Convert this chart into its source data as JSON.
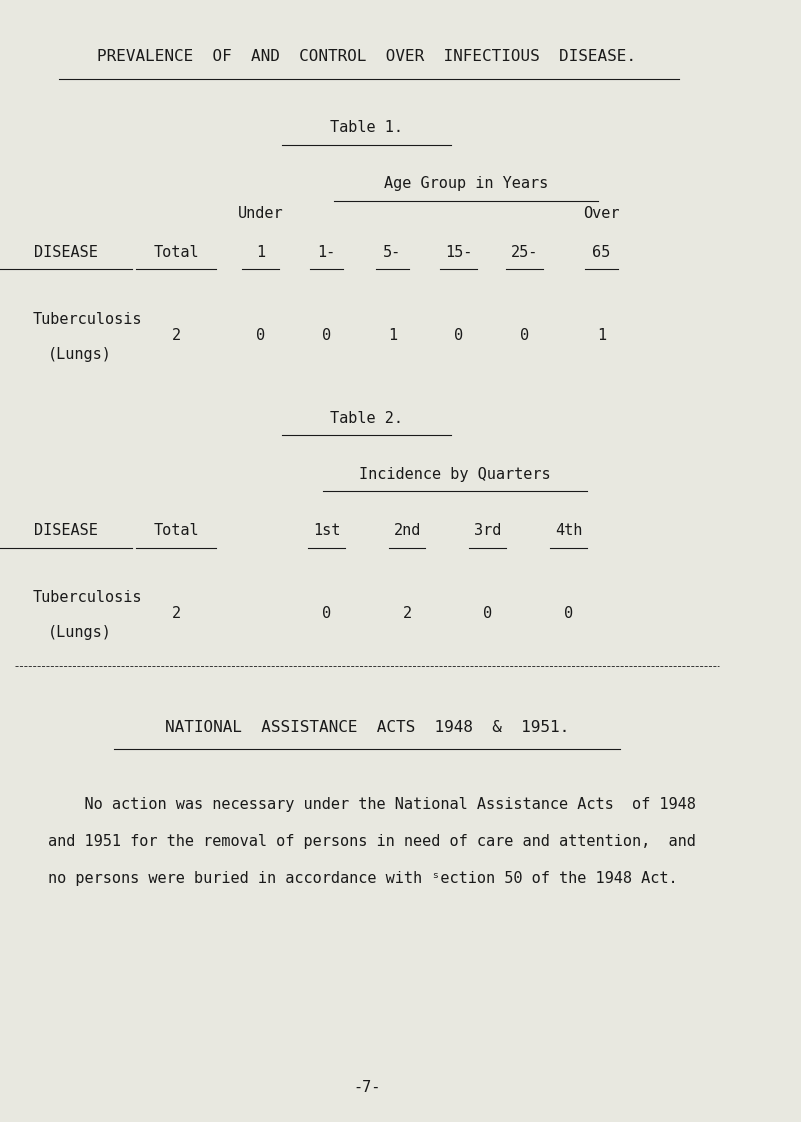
{
  "bg_color": "#e8e8e0",
  "text_color": "#1a1a1a",
  "page_width": 8.01,
  "page_height": 11.22,
  "main_title": "PREVALENCE  OF  AND  CONTROL  OVER  INFECTIOUS  DISEASE.",
  "table1_title": "Table 1.",
  "table1_subtitle": "Age Group in Years",
  "table1_values": [
    "2",
    "0",
    "0",
    "1",
    "0",
    "0",
    "1"
  ],
  "table2_title": "Table 2.",
  "table2_subtitle": "Incidence by Quarters",
  "table2_values": [
    "2",
    "0",
    "2",
    "0",
    "0"
  ],
  "national_title": "NATIONAL  ASSISTANCE  ACTS  1948  &  1951.",
  "national_body_line1": "    No action was necessary under the National Assistance Acts  of 1948",
  "national_body_line2": "and 1951 for the removal of persons in need of care and attention,  and",
  "national_body_line3": "no persons were buried in accordance with ˢection 50 of the 1948 Act.",
  "page_number": "-7-",
  "title_fontsize": 11.5,
  "body_fontsize": 11.0,
  "header_fontsize": 11.0
}
